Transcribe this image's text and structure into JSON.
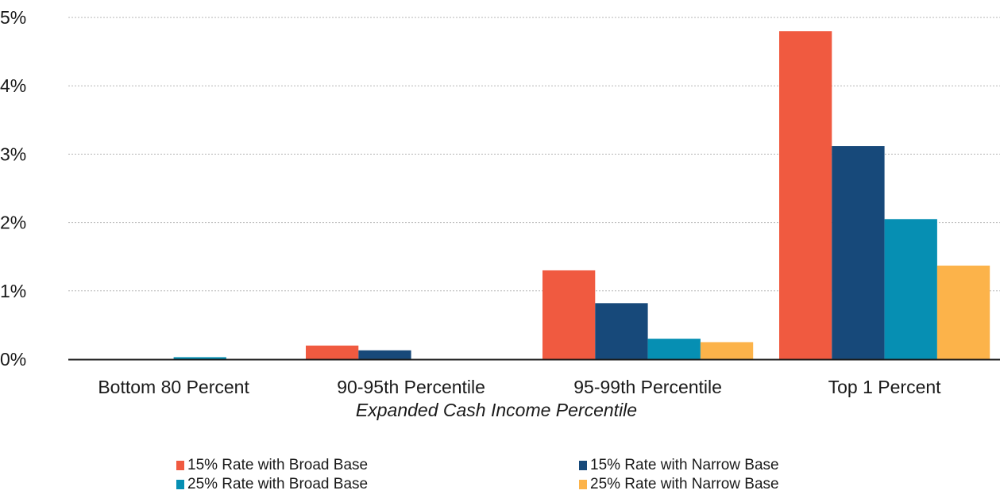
{
  "chart_data": {
    "type": "bar",
    "categories": [
      "Bottom 80 Percent",
      "90-95th Percentile",
      "95-99th Percentile",
      "Top 1 Percent"
    ],
    "series": [
      {
        "name": "15% Rate with Broad Base",
        "color": "#f05a40",
        "values": [
          0.0,
          0.2,
          1.3,
          4.8
        ]
      },
      {
        "name": "15% Rate with Narrow Base",
        "color": "#17497a",
        "values": [
          0.0,
          0.13,
          0.82,
          3.12
        ]
      },
      {
        "name": "25% Rate with Broad Base",
        "color": "#068fb3",
        "values": [
          0.03,
          0.0,
          0.3,
          2.05
        ]
      },
      {
        "name": "25% Rate with Narrow Base",
        "color": "#fcb34a",
        "values": [
          0.0,
          0.0,
          0.25,
          1.37
        ]
      }
    ],
    "title": "",
    "xlabel": "Expanded Cash Income Percentile",
    "ylabel": "",
    "ylim": [
      0,
      5
    ],
    "yticks": [
      "0%",
      "1%",
      "2%",
      "3%",
      "4%",
      "5%"
    ],
    "grid": true,
    "legend_position": "bottom"
  }
}
